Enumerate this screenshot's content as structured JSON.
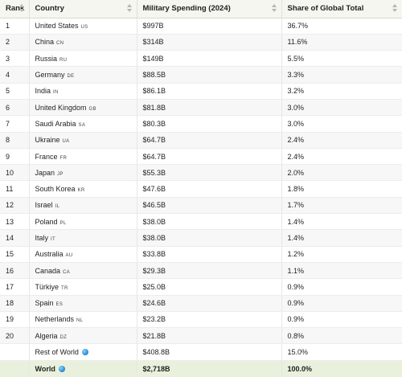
{
  "headers": {
    "rank": "Rank",
    "country": "Country",
    "spending": "Military Spending (2024)",
    "share": "Share of Global Total"
  },
  "rows": [
    {
      "rank": "1",
      "country": "United States",
      "code": "US",
      "spending": "$997B",
      "share": "36.7%"
    },
    {
      "rank": "2",
      "country": "China",
      "code": "CN",
      "spending": "$314B",
      "share": "11.6%"
    },
    {
      "rank": "3",
      "country": "Russia",
      "code": "RU",
      "spending": "$149B",
      "share": "5.5%"
    },
    {
      "rank": "4",
      "country": "Germany",
      "code": "DE",
      "spending": "$88.5B",
      "share": "3.3%"
    },
    {
      "rank": "5",
      "country": "India",
      "code": "IN",
      "spending": "$86.1B",
      "share": "3.2%"
    },
    {
      "rank": "6",
      "country": "United Kingdom",
      "code": "GB",
      "spending": "$81.8B",
      "share": "3.0%"
    },
    {
      "rank": "7",
      "country": "Saudi Arabia",
      "code": "SA",
      "spending": "$80.3B",
      "share": "3.0%"
    },
    {
      "rank": "8",
      "country": "Ukraine",
      "code": "UA",
      "spending": "$64.7B",
      "share": "2.4%"
    },
    {
      "rank": "9",
      "country": "France",
      "code": "FR",
      "spending": "$64.7B",
      "share": "2.4%"
    },
    {
      "rank": "10",
      "country": "Japan",
      "code": "JP",
      "spending": "$55.3B",
      "share": "2.0%"
    },
    {
      "rank": "11",
      "country": "South Korea",
      "code": "KR",
      "spending": "$47.6B",
      "share": "1.8%"
    },
    {
      "rank": "12",
      "country": "Israel",
      "code": "IL",
      "spending": "$46.5B",
      "share": "1.7%"
    },
    {
      "rank": "13",
      "country": "Poland",
      "code": "PL",
      "spending": "$38.0B",
      "share": "1.4%"
    },
    {
      "rank": "14",
      "country": "Italy",
      "code": "IT",
      "spending": "$38.0B",
      "share": "1.4%"
    },
    {
      "rank": "15",
      "country": "Australia",
      "code": "AU",
      "spending": "$33.8B",
      "share": "1.2%"
    },
    {
      "rank": "16",
      "country": "Canada",
      "code": "CA",
      "spending": "$29.3B",
      "share": "1.1%"
    },
    {
      "rank": "17",
      "country": "Türkiye",
      "code": "TR",
      "spending": "$25.0B",
      "share": "0.9%"
    },
    {
      "rank": "18",
      "country": "Spain",
      "code": "ES",
      "spending": "$24.6B",
      "share": "0.9%"
    },
    {
      "rank": "19",
      "country": "Netherlands",
      "code": "NL",
      "spending": "$23.2B",
      "share": "0.9%"
    },
    {
      "rank": "20",
      "country": "Algeria",
      "code": "DZ",
      "spending": "$21.8B",
      "share": "0.8%"
    },
    {
      "rank": "",
      "country": "Rest of World",
      "code": "",
      "icon": "globe-icon",
      "spending": "$408.8B",
      "share": "15.0%"
    }
  ],
  "total": {
    "rank": "",
    "country": "World",
    "icon": "globe-icon",
    "spending": "$2,718B",
    "share": "100.0%"
  },
  "colors": {
    "header_bg": "#f4f6ef",
    "total_row_bg": "#e9f1dc",
    "stripe_bg": "#f7f7f7"
  }
}
